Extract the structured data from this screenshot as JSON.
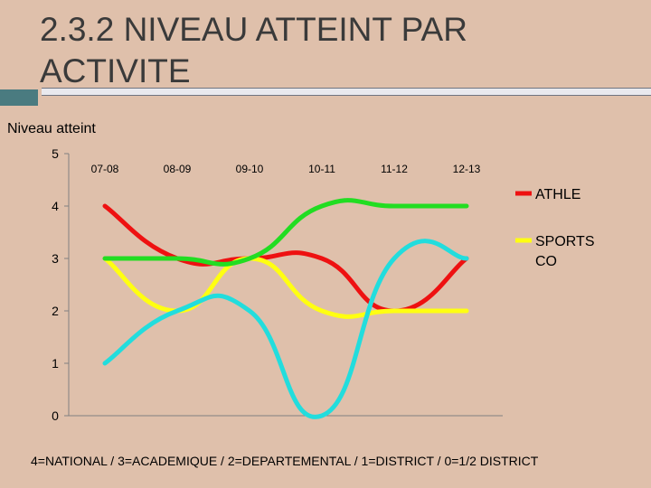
{
  "slide": {
    "title": "2.3.2 NIVEAU ATTEINT PAR ACTIVITE",
    "footer": "4=NATIONAL  / 3=ACADEMIQUE / 2=DEPARTEMENTAL / 1=DISTRICT / 0=1/2 DISTRICT"
  },
  "chart_data": {
    "type": "line",
    "title": "Niveau atteint",
    "categories": [
      "07-08",
      "08-09",
      "09-10",
      "10-11",
      "11-12",
      "12-13"
    ],
    "ylim": [
      0,
      5
    ],
    "yticks": [
      0,
      1,
      2,
      3,
      4,
      5
    ],
    "legend_position": "right",
    "smooth": true,
    "series": [
      {
        "name": "ATHLE",
        "color": "#ee1111",
        "values": [
          4,
          3,
          3,
          3,
          2,
          3
        ]
      },
      {
        "name": "SPORTS CO",
        "color": "#ffff11",
        "values": [
          3,
          2,
          3,
          2,
          2,
          2
        ]
      },
      {
        "color": "#22dd22",
        "values": [
          3,
          3,
          3,
          4,
          4,
          4
        ]
      },
      {
        "color": "#22dddd",
        "values": [
          1,
          2,
          2,
          0,
          3,
          3
        ]
      }
    ]
  }
}
